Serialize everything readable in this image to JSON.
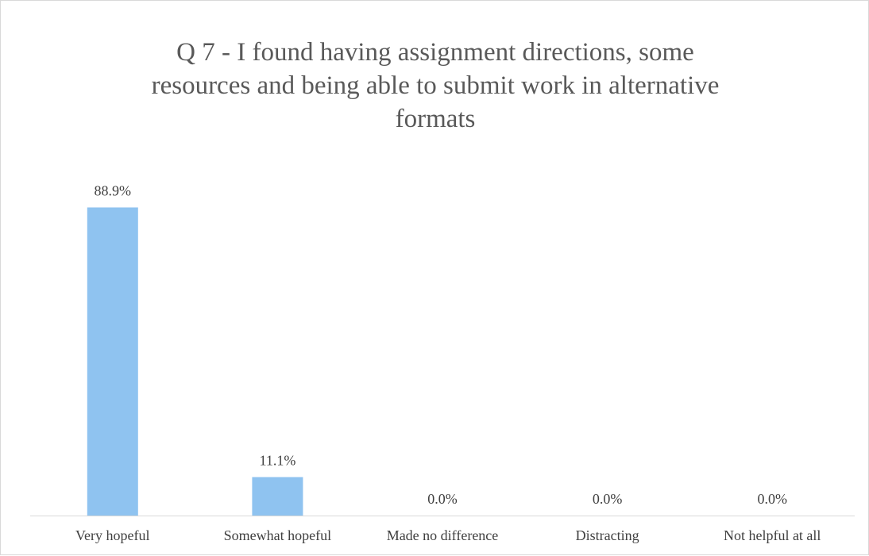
{
  "chart_data": {
    "type": "bar",
    "title_lines": [
      "Q 7 - I found having assignment directions, some",
      "resources and being able to submit work in alternative",
      "formats"
    ],
    "categories": [
      "Very hopeful",
      "Somewhat hopeful",
      "Made no difference",
      "Distracting",
      "Not helpful at all"
    ],
    "values": [
      88.9,
      11.1,
      0.0,
      0.0,
      0.0
    ],
    "value_labels": [
      "88.9%",
      "11.1%",
      "0.0%",
      "0.0%",
      "0.0%"
    ],
    "xlabel": "",
    "ylabel": "",
    "ylim": [
      0,
      100
    ],
    "grid": false,
    "legend": "none",
    "bar_color": "#8fc3f0",
    "axis_color": "#d9d9d9",
    "text_color": "#404040",
    "title_color": "#595959"
  }
}
